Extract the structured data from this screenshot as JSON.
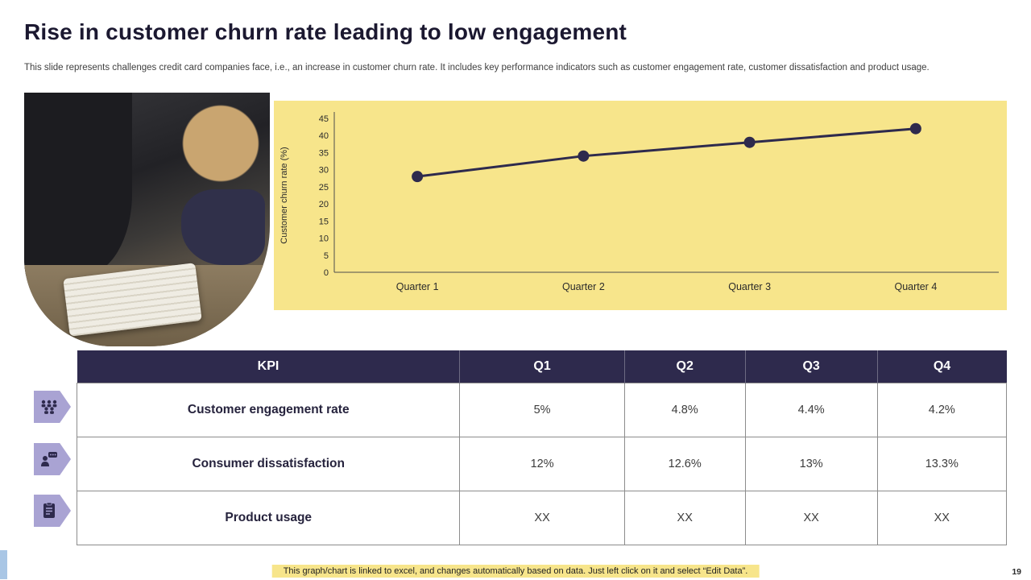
{
  "slide": {
    "title": "Rise in customer churn rate leading to low engagement",
    "subtitle": "This slide represents challenges credit card companies face, i.e., an increase in customer churn rate. It includes key performance indicators such as customer engagement rate, customer dissatisfaction and product usage.",
    "footer": "This graph/chart is linked to excel, and changes automatically based on data. Just left click on it and select “Edit Data”.",
    "page_number": "19"
  },
  "chart_data": {
    "type": "line",
    "categories": [
      "Quarter 1",
      "Quarter 2",
      "Quarter 3",
      "Quarter 4"
    ],
    "values": [
      28,
      34,
      38,
      42
    ],
    "title": "",
    "xlabel": "",
    "ylabel": "Customer churn rate (%)",
    "ylim": [
      0,
      45
    ],
    "ytick_step": 5,
    "grid": false,
    "legend": "none",
    "line_color": "#2e2a4d",
    "panel_background": "#f7e58b"
  },
  "table": {
    "headers": [
      "KPI",
      "Q1",
      "Q2",
      "Q3",
      "Q4"
    ],
    "rows": [
      {
        "icon": "engagement-audience-icon",
        "label": "Customer engagement rate",
        "values": [
          "5%",
          "4.8%",
          "4.4%",
          "4.2%"
        ]
      },
      {
        "icon": "dissatisfaction-icon",
        "label": "Consumer dissatisfaction",
        "values": [
          "12%",
          "12.6%",
          "13%",
          "13.3%"
        ]
      },
      {
        "icon": "product-usage-icon",
        "label": "Product usage",
        "values": [
          "XX",
          "XX",
          "XX",
          "XX"
        ]
      }
    ]
  },
  "colors": {
    "accent_yellow": "#f7e58b",
    "dark_navy": "#2e2a4d",
    "icon_purple": "#a9a3d3",
    "accent_blue": "#a9c6e5"
  }
}
